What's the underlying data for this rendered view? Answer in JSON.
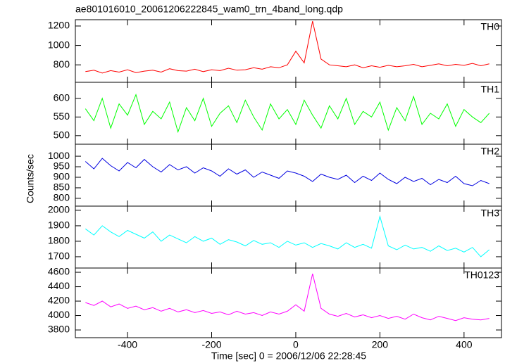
{
  "chart_data": [
    {
      "type": "line",
      "title": "ae801016010_20061206222845_wam0_trn_4band_long.qdp",
      "x": [
        -500,
        -480,
        -460,
        -440,
        -420,
        -400,
        -380,
        -360,
        -340,
        -320,
        -300,
        -280,
        -260,
        -240,
        -220,
        -200,
        -180,
        -160,
        -140,
        -120,
        -100,
        -80,
        -60,
        -40,
        -20,
        0,
        20,
        40,
        60,
        80,
        100,
        120,
        140,
        160,
        180,
        200,
        220,
        240,
        260,
        280,
        300,
        320,
        340,
        360,
        380,
        400,
        420,
        440,
        460
      ],
      "xlim": [
        -524,
        489
      ],
      "series": [
        {
          "name": "TH0",
          "color": "#ff0000",
          "values": [
            730,
            745,
            715,
            740,
            725,
            750,
            720,
            735,
            745,
            725,
            760,
            740,
            735,
            755,
            730,
            750,
            740,
            765,
            745,
            750,
            770,
            755,
            780,
            770,
            800,
            940,
            820,
            1250,
            860,
            800,
            790,
            780,
            800,
            770,
            790,
            775,
            795,
            780,
            790,
            805,
            780,
            795,
            810,
            790,
            805,
            795,
            815,
            790,
            810
          ]
        }
      ],
      "ylim": [
        620,
        1265
      ],
      "yticks": [
        800,
        1000,
        1200
      ]
    },
    {
      "type": "line",
      "x": [
        -500,
        -480,
        -460,
        -440,
        -420,
        -400,
        -380,
        -360,
        -340,
        -320,
        -300,
        -280,
        -260,
        -240,
        -220,
        -200,
        -180,
        -160,
        -140,
        -120,
        -100,
        -80,
        -60,
        -40,
        -20,
        0,
        20,
        40,
        60,
        80,
        100,
        120,
        140,
        160,
        180,
        200,
        220,
        240,
        260,
        280,
        300,
        320,
        340,
        360,
        380,
        400,
        420,
        440,
        460
      ],
      "xlim": [
        -524,
        489
      ],
      "series": [
        {
          "name": "TH1",
          "color": "#00ff00",
          "values": [
            572,
            540,
            600,
            520,
            585,
            555,
            610,
            530,
            565,
            545,
            590,
            510,
            575,
            540,
            600,
            525,
            560,
            580,
            535,
            595,
            550,
            515,
            585,
            545,
            570,
            530,
            595,
            555,
            520,
            580,
            545,
            600,
            530,
            565,
            550,
            590,
            515,
            575,
            540,
            605,
            530,
            560,
            545,
            585,
            525,
            570,
            550,
            535,
            560
          ]
        }
      ],
      "ylim": [
        477,
        643
      ],
      "yticks": [
        500,
        550,
        600
      ]
    },
    {
      "type": "line",
      "y_label": "Counts/sec",
      "x": [
        -500,
        -480,
        -460,
        -440,
        -420,
        -400,
        -380,
        -360,
        -340,
        -320,
        -300,
        -280,
        -260,
        -240,
        -220,
        -200,
        -180,
        -160,
        -140,
        -120,
        -100,
        -80,
        -60,
        -40,
        -20,
        0,
        20,
        40,
        60,
        80,
        100,
        120,
        140,
        160,
        180,
        200,
        220,
        240,
        260,
        280,
        300,
        320,
        340,
        360,
        380,
        400,
        420,
        440,
        460
      ],
      "xlim": [
        -524,
        489
      ],
      "series": [
        {
          "name": "TH2",
          "color": "#0000e0",
          "values": [
            975,
            940,
            990,
            955,
            930,
            970,
            945,
            985,
            950,
            925,
            960,
            935,
            950,
            920,
            945,
            930,
            905,
            940,
            915,
            935,
            900,
            925,
            910,
            895,
            930,
            920,
            905,
            880,
            915,
            900,
            890,
            910,
            875,
            905,
            885,
            920,
            890,
            870,
            900,
            880,
            895,
            865,
            890,
            875,
            905,
            870,
            860,
            885,
            870
          ]
        }
      ],
      "ylim": [
        763,
        1057
      ],
      "yticks": [
        800,
        850,
        900,
        950,
        1000
      ]
    },
    {
      "type": "line",
      "x": [
        -500,
        -480,
        -460,
        -440,
        -420,
        -400,
        -380,
        -360,
        -340,
        -320,
        -300,
        -280,
        -260,
        -240,
        -220,
        -200,
        -180,
        -160,
        -140,
        -120,
        -100,
        -80,
        -60,
        -40,
        -20,
        0,
        20,
        40,
        60,
        80,
        100,
        120,
        140,
        160,
        180,
        200,
        220,
        240,
        260,
        280,
        300,
        320,
        340,
        360,
        380,
        400,
        420,
        440,
        460
      ],
      "xlim": [
        -524,
        489
      ],
      "series": [
        {
          "name": "TH3",
          "color": "#00ffff",
          "values": [
            1880,
            1840,
            1900,
            1860,
            1830,
            1870,
            1845,
            1820,
            1860,
            1800,
            1840,
            1815,
            1790,
            1830,
            1800,
            1820,
            1780,
            1810,
            1795,
            1770,
            1805,
            1780,
            1790,
            1760,
            1800,
            1775,
            1790,
            1760,
            1785,
            1770,
            1750,
            1790,
            1760,
            1780,
            1755,
            1960,
            1770,
            1745,
            1775,
            1750,
            1760,
            1735,
            1770,
            1740,
            1755,
            1730,
            1760,
            1700,
            1745
          ]
        }
      ],
      "ylim": [
        1627,
        2027
      ],
      "yticks": [
        1700,
        1800,
        1900,
        2000
      ]
    },
    {
      "type": "line",
      "x_label": "Time [sec] 0 = 2006/12/06 22:28:45",
      "x": [
        -500,
        -480,
        -460,
        -440,
        -420,
        -400,
        -380,
        -360,
        -340,
        -320,
        -300,
        -280,
        -260,
        -240,
        -220,
        -200,
        -180,
        -160,
        -140,
        -120,
        -100,
        -80,
        -60,
        -40,
        -20,
        0,
        20,
        40,
        60,
        80,
        100,
        120,
        140,
        160,
        180,
        200,
        220,
        240,
        260,
        280,
        300,
        320,
        340,
        360,
        380,
        400,
        420,
        440,
        460
      ],
      "xlim": [
        -524,
        489
      ],
      "xticks": [
        -400,
        -200,
        0,
        200,
        400
      ],
      "series": [
        {
          "name": "TH0123",
          "color": "#ff00ff",
          "values": [
            4180,
            4140,
            4200,
            4120,
            4160,
            4100,
            4130,
            4080,
            4110,
            4060,
            4100,
            4050,
            4080,
            4040,
            4070,
            4030,
            4050,
            4010,
            4060,
            4020,
            4040,
            4000,
            4050,
            4020,
            4060,
            4150,
            4060,
            4580,
            4100,
            4020,
            3990,
            4030,
            3980,
            4010,
            3970,
            4000,
            3960,
            3990,
            3950,
            4020,
            3970,
            3940,
            3990,
            3960,
            3930,
            3970,
            3950,
            3940,
            3960
          ]
        }
      ],
      "ylim": [
        3693,
        4659
      ],
      "yticks": [
        3800,
        4000,
        4200,
        4400,
        4600
      ]
    }
  ]
}
